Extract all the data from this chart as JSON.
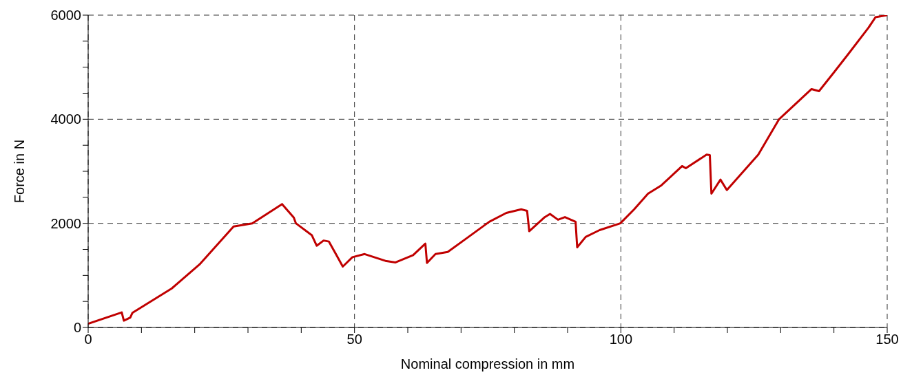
{
  "chart_data": {
    "type": "line",
    "xlabel": "Nominal compression in mm",
    "ylabel": "Force in N",
    "xlim": [
      0,
      150
    ],
    "ylim": [
      0,
      6000
    ],
    "xticks": [
      0,
      {
        "value": 10,
        "label": null
      },
      {
        "value": 20,
        "label": null
      },
      {
        "value": 30,
        "label": null
      },
      {
        "value": 40,
        "label": null
      },
      50,
      {
        "value": 60,
        "label": null
      },
      {
        "value": 70,
        "label": null
      },
      {
        "value": 80,
        "label": null
      },
      {
        "value": 90,
        "label": null
      },
      100,
      {
        "value": 110,
        "label": null
      },
      {
        "value": 120,
        "label": null
      },
      {
        "value": 130,
        "label": null
      },
      {
        "value": 140,
        "label": null
      },
      150
    ],
    "yticks": [
      0,
      {
        "value": 500,
        "label": null
      },
      {
        "value": 1000,
        "label": null
      },
      {
        "value": 1500,
        "label": null
      },
      2000,
      {
        "value": 2500,
        "label": null
      },
      {
        "value": 3000,
        "label": null
      },
      {
        "value": 3500,
        "label": null
      },
      4000,
      {
        "value": 4500,
        "label": null
      },
      {
        "value": 5000,
        "label": null
      },
      {
        "value": 5500,
        "label": null
      },
      6000
    ],
    "grid": true,
    "line_style": "solid",
    "marker": "none",
    "series": [
      {
        "color": "#c00000",
        "x": [
          0,
          6.3,
          6.7,
          7.9,
          8.3,
          15.7,
          20.9,
          27.3,
          30.8,
          36.4,
          38.6,
          39,
          42,
          42.9,
          44.2,
          45.2,
          46.5,
          47.8,
          49.6,
          51.9,
          55.8,
          57.7,
          61,
          63.3,
          63.6,
          65.2,
          67.5,
          71.4,
          75.3,
          78.5,
          81.3,
          82.4,
          82.8,
          85.6,
          86.7,
          88.2,
          89.5,
          91.5,
          91.8,
          93.4,
          96,
          99.9,
          102.5,
          105.1,
          107.6,
          111.5,
          112.2,
          116.1,
          116.7,
          117,
          118.7,
          119.9,
          125.8,
          129.7,
          135.8,
          137.2,
          140,
          142.6,
          146.5,
          147.8,
          150
        ],
        "values": [
          70,
          290,
          130,
          190,
          280,
          750,
          1210,
          1940,
          2000,
          2370,
          2110,
          2000,
          1770,
          1570,
          1670,
          1650,
          1410,
          1170,
          1350,
          1410,
          1280,
          1250,
          1390,
          1610,
          1240,
          1410,
          1450,
          1740,
          2030,
          2200,
          2270,
          2240,
          1850,
          2110,
          2180,
          2070,
          2120,
          2030,
          1540,
          1740,
          1870,
          2000,
          2270,
          2570,
          2730,
          3100,
          3060,
          3320,
          3310,
          2570,
          2840,
          2640,
          3320,
          4000,
          4580,
          4540,
          4900,
          5240,
          5760,
          5960,
          6000
        ]
      }
    ]
  }
}
